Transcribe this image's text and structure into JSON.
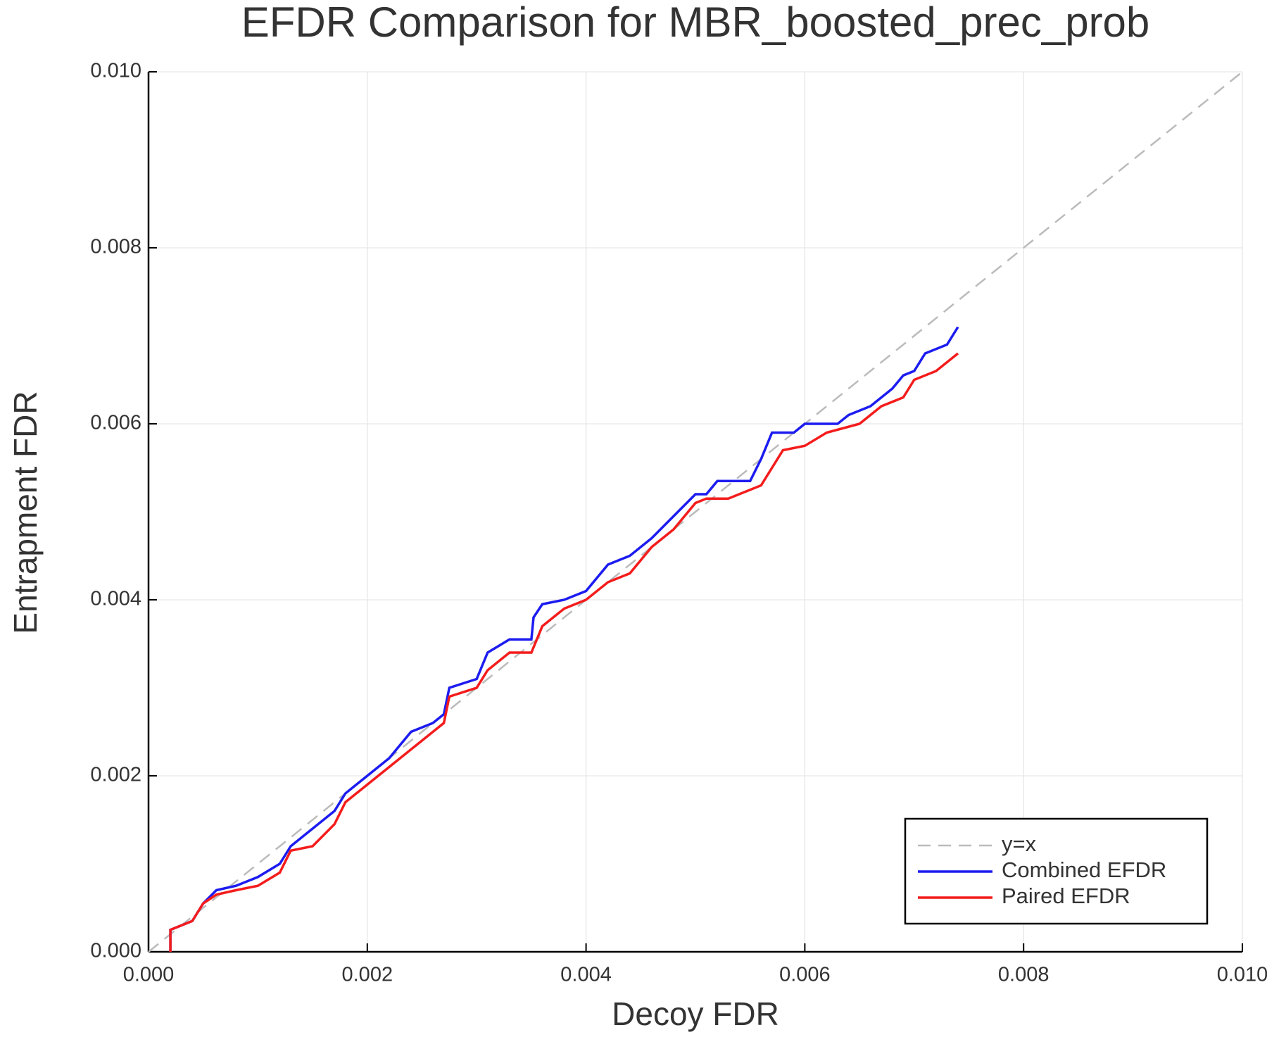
{
  "chart_data": {
    "type": "line",
    "title": "EFDR Comparison for MBR_boosted_prec_prob",
    "xlabel": "Decoy FDR",
    "ylabel": "Entrapment FDR",
    "xlim": [
      0,
      0.01
    ],
    "ylim": [
      0,
      0.01
    ],
    "xticks": [
      {
        "value": 0,
        "label": "0.000"
      },
      {
        "value": 0.002,
        "label": "0.002"
      },
      {
        "value": 0.004,
        "label": "0.004"
      },
      {
        "value": 0.006,
        "label": "0.006"
      },
      {
        "value": 0.008,
        "label": "0.008"
      },
      {
        "value": 0.01,
        "label": "0.010"
      }
    ],
    "yticks": [
      {
        "value": 0,
        "label": "0.000"
      },
      {
        "value": 0.002,
        "label": "0.002"
      },
      {
        "value": 0.004,
        "label": "0.004"
      },
      {
        "value": 0.006,
        "label": "0.006"
      },
      {
        "value": 0.008,
        "label": "0.008"
      },
      {
        "value": 0.01,
        "label": "0.010"
      }
    ],
    "grid": true,
    "legend": "lower right",
    "series": [
      {
        "name": "y=x",
        "color": "#bbbbbb",
        "dash": true,
        "x": [
          0,
          0.01
        ],
        "values": [
          0,
          0.01
        ]
      },
      {
        "name": "Combined EFDR",
        "color": "#1c1cf0",
        "x": [
          0.0002,
          0.0002,
          0.0004,
          0.0005,
          0.00062,
          0.0008,
          0.001,
          0.0012,
          0.0013,
          0.0015,
          0.0017,
          0.0018,
          0.002,
          0.0022,
          0.0024,
          0.0026,
          0.0027,
          0.00275,
          0.003,
          0.0031,
          0.0033,
          0.0035,
          0.00352,
          0.0036,
          0.0038,
          0.004,
          0.0042,
          0.0044,
          0.0046,
          0.0048,
          0.005,
          0.0051,
          0.0052,
          0.0055,
          0.0056,
          0.0057,
          0.0059,
          0.006,
          0.0063,
          0.0064,
          0.0066,
          0.0067,
          0.0068,
          0.0069,
          0.007,
          0.0071,
          0.0073,
          0.0074
        ],
        "values": [
          0,
          0.00025,
          0.00035,
          0.00055,
          0.0007,
          0.00075,
          0.00085,
          0.001,
          0.0012,
          0.0014,
          0.0016,
          0.0018,
          0.002,
          0.0022,
          0.0025,
          0.0026,
          0.0027,
          0.003,
          0.0031,
          0.0034,
          0.00355,
          0.00355,
          0.0038,
          0.00395,
          0.004,
          0.0041,
          0.0044,
          0.0045,
          0.0047,
          0.00495,
          0.0052,
          0.0052,
          0.00535,
          0.00535,
          0.0056,
          0.0059,
          0.0059,
          0.006,
          0.006,
          0.0061,
          0.0062,
          0.0063,
          0.0064,
          0.00655,
          0.0066,
          0.0068,
          0.0069,
          0.0071
        ]
      },
      {
        "name": "Paired EFDR",
        "color": "#f41c1c",
        "x": [
          0.0002,
          0.0002,
          0.0004,
          0.0005,
          0.00062,
          0.0008,
          0.001,
          0.0012,
          0.0013,
          0.0015,
          0.0017,
          0.0018,
          0.002,
          0.0022,
          0.0024,
          0.0026,
          0.0027,
          0.00275,
          0.003,
          0.0031,
          0.0033,
          0.0035,
          0.0036,
          0.0038,
          0.004,
          0.0042,
          0.0044,
          0.0046,
          0.0048,
          0.005,
          0.0051,
          0.0053,
          0.0056,
          0.0058,
          0.006,
          0.0062,
          0.0065,
          0.0066,
          0.0067,
          0.0069,
          0.007,
          0.0072,
          0.0074
        ],
        "values": [
          0,
          0.00025,
          0.00035,
          0.00055,
          0.00065,
          0.0007,
          0.00075,
          0.0009,
          0.00115,
          0.0012,
          0.00145,
          0.0017,
          0.0019,
          0.0021,
          0.0023,
          0.0025,
          0.0026,
          0.0029,
          0.003,
          0.0032,
          0.0034,
          0.0034,
          0.0037,
          0.0039,
          0.004,
          0.0042,
          0.0043,
          0.0046,
          0.0048,
          0.0051,
          0.00515,
          0.00515,
          0.0053,
          0.0057,
          0.00575,
          0.0059,
          0.006,
          0.0061,
          0.0062,
          0.0063,
          0.0065,
          0.0066,
          0.0068
        ]
      }
    ]
  }
}
